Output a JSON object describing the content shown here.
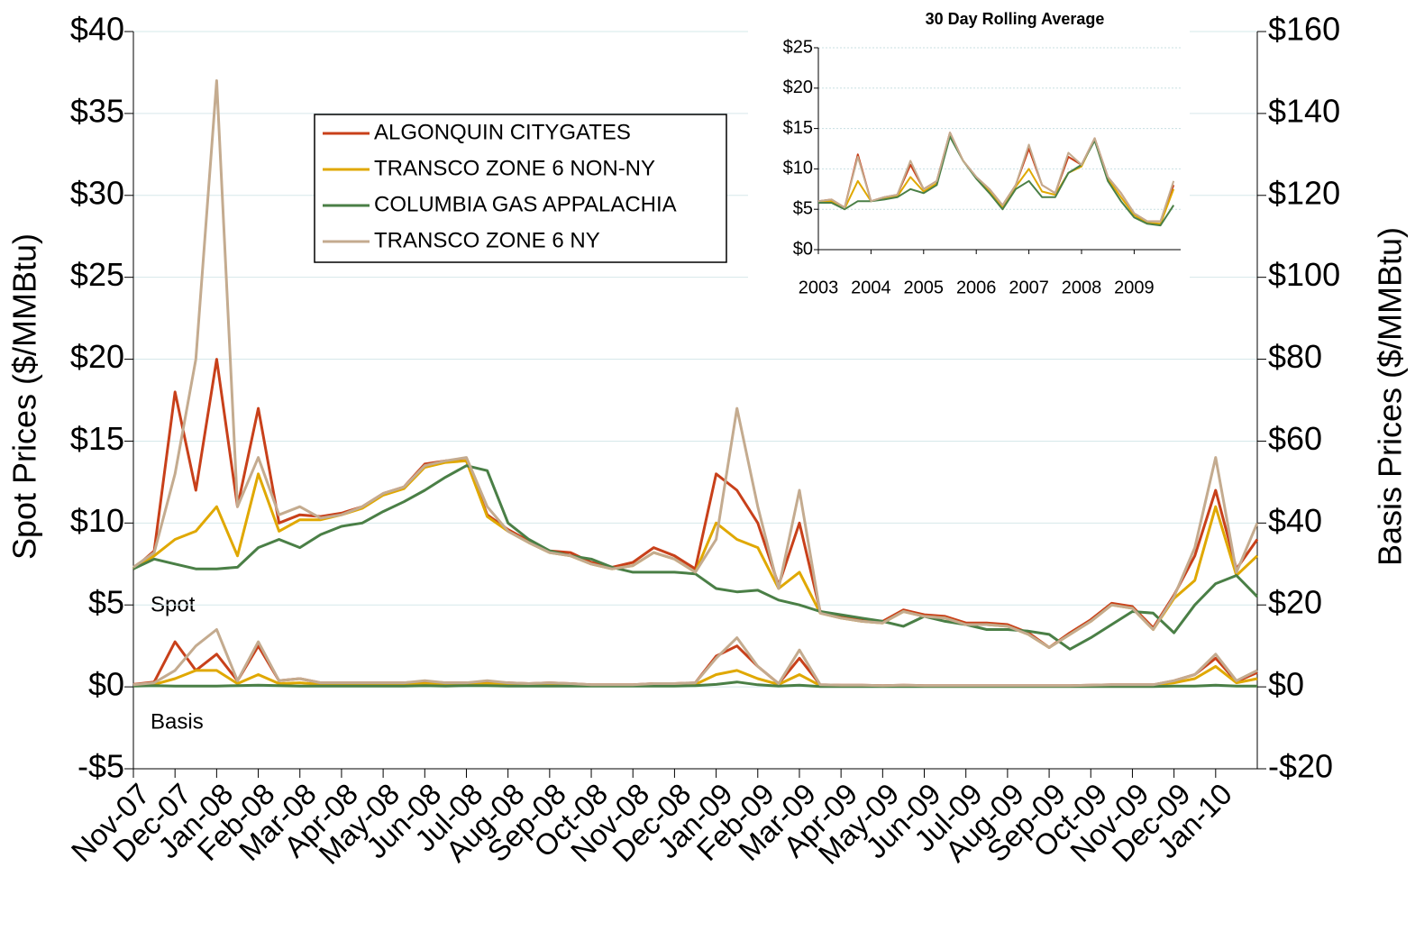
{
  "chart_data": {
    "type": "line",
    "ylabel": "Spot Prices ($/MMBtu)",
    "y2label": "Basis Prices ($/MMBtu)",
    "annotations": [
      "Spot",
      "Basis"
    ],
    "ylim": [
      -5,
      40
    ],
    "yticks": [
      {
        "value": -5,
        "label": "-$5"
      },
      {
        "value": 0,
        "label": "$0"
      },
      {
        "value": 5,
        "label": "$5"
      },
      {
        "value": 10,
        "label": "$10"
      },
      {
        "value": 15,
        "label": "$15"
      },
      {
        "value": 20,
        "label": "$20"
      },
      {
        "value": 25,
        "label": "$25"
      },
      {
        "value": 30,
        "label": "$30"
      },
      {
        "value": 35,
        "label": "$35"
      },
      {
        "value": 40,
        "label": "$40"
      }
    ],
    "y2lim": [
      -20,
      160
    ],
    "y2ticks": [
      {
        "value": -20,
        "label": "-$20"
      },
      {
        "value": 0,
        "label": "$0"
      },
      {
        "value": 20,
        "label": "$20"
      },
      {
        "value": 40,
        "label": "$40"
      },
      {
        "value": 60,
        "label": "$60"
      },
      {
        "value": 80,
        "label": "$80"
      },
      {
        "value": 100,
        "label": "$100"
      },
      {
        "value": 120,
        "label": "$120"
      },
      {
        "value": 140,
        "label": "$140"
      },
      {
        "value": 160,
        "label": "$160"
      }
    ],
    "grid": true,
    "categories": [
      "Nov-07",
      null,
      "Dec-07",
      null,
      "Jan-08",
      null,
      "Feb-08",
      null,
      "Mar-08",
      null,
      "Apr-08",
      null,
      "May-08",
      null,
      "Jun-08",
      null,
      "Jul-08",
      null,
      "Aug-08",
      null,
      "Sep-08",
      null,
      "Oct-08",
      null,
      "Nov-08",
      null,
      "Dec-08",
      null,
      "Jan-09",
      null,
      "Feb-09",
      null,
      "Mar-09",
      null,
      "Apr-09",
      null,
      "May-09",
      null,
      "Jun-09",
      null,
      "Jul-09",
      null,
      "Aug-09",
      null,
      "Sep-09",
      null,
      "Oct-09",
      null,
      "Nov-09",
      null,
      "Dec-09",
      null,
      "Jan-10",
      null,
      null
    ],
    "series": [
      {
        "name": "ALGONQUIN CITYGATES",
        "color": "#c8401a",
        "values": [
          7.2,
          8.3,
          18,
          12,
          20,
          11,
          17,
          10,
          10.5,
          10.4,
          10.6,
          11,
          11.8,
          12.2,
          13.6,
          13.8,
          13.8,
          10.5,
          9.6,
          8.9,
          8.3,
          8.2,
          7.6,
          7.3,
          7.6,
          8.5,
          8,
          7.2,
          13,
          12,
          10,
          6.2,
          10,
          4.6,
          4.3,
          4.1,
          4.0,
          4.7,
          4.4,
          4.3,
          3.9,
          3.9,
          3.8,
          3.3,
          2.4,
          3.3,
          4.1,
          5.1,
          4.9,
          3.6,
          5.6,
          8.0,
          12,
          7.2,
          9
        ],
        "basis": [
          0.6,
          1.2,
          11,
          4,
          8,
          1.5,
          10,
          1.5,
          2,
          1,
          1,
          1,
          1,
          1,
          1.3,
          1,
          1,
          1.2,
          1,
          0.8,
          1,
          0.8,
          0.5,
          0.5,
          0.5,
          0.8,
          0.8,
          1,
          7.5,
          10,
          5,
          0.8,
          7,
          0.5,
          0.4,
          0.4,
          0.3,
          0.4,
          0.3,
          0.3,
          0.3,
          0.3,
          0.3,
          0.3,
          0.3,
          0.3,
          0.4,
          0.5,
          0.5,
          0.5,
          1.5,
          3,
          7,
          1.3,
          3.5
        ],
        "inset_values": [
          6,
          6.2,
          5.2,
          11.8,
          6,
          6.5,
          6.8,
          10.5,
          7.5,
          8.5,
          14.5,
          11,
          9,
          7.5,
          5.5,
          8,
          12.5,
          8,
          7,
          11.5,
          10.5,
          13.8,
          9,
          7,
          4.5,
          3.5,
          3.5,
          8
        ]
      },
      {
        "name": "TRANSCO ZONE 6 NON-NY",
        "color": "#e0a800",
        "values": [
          7.2,
          8.0,
          9,
          9.5,
          11,
          8,
          13,
          9.5,
          10.2,
          10.2,
          10.5,
          10.9,
          11.7,
          12.1,
          13.4,
          13.7,
          13.8,
          10.4,
          9.5,
          8.8,
          8.2,
          8.0,
          7.5,
          7.2,
          7.4,
          8.2,
          7.8,
          7.0,
          10,
          9,
          8.5,
          6.0,
          7,
          4.5,
          4.2,
          4.0,
          3.9,
          4.6,
          4.3,
          4.2,
          3.8,
          3.8,
          3.7,
          3.2,
          2.4,
          3.2,
          4.0,
          5.0,
          4.8,
          3.5,
          5.4,
          6.5,
          11,
          6.8,
          8
        ],
        "basis": [
          0.4,
          0.6,
          2,
          4,
          4,
          0.8,
          3,
          0.8,
          1,
          0.6,
          0.6,
          0.6,
          0.6,
          0.6,
          0.8,
          0.6,
          0.6,
          0.8,
          0.6,
          0.5,
          0.6,
          0.5,
          0.4,
          0.4,
          0.4,
          0.6,
          0.6,
          0.6,
          3,
          4,
          2,
          0.6,
          3,
          0.3,
          0.3,
          0.3,
          0.2,
          0.3,
          0.2,
          0.2,
          0.2,
          0.2,
          0.2,
          0.2,
          0.2,
          0.2,
          0.3,
          0.4,
          0.4,
          0.4,
          1,
          2,
          5,
          1,
          2
        ],
        "inset_values": [
          5.9,
          6,
          5.1,
          8.5,
          6,
          6.3,
          6.6,
          9,
          7.2,
          8.2,
          14.3,
          11,
          8.9,
          7.2,
          5.2,
          7.8,
          10,
          7.2,
          6.8,
          9.5,
          10.3,
          13.7,
          8.8,
          6.5,
          4.3,
          3.3,
          3.2,
          7.5
        ]
      },
      {
        "name": "COLUMBIA GAS APPALACHIA",
        "color": "#4a7f46",
        "values": [
          7.2,
          7.8,
          7.5,
          7.2,
          7.2,
          7.3,
          8.5,
          9,
          8.5,
          9.3,
          9.8,
          10,
          10.7,
          11.3,
          12,
          12.8,
          13.5,
          13.2,
          10,
          9,
          8.3,
          8.0,
          7.8,
          7.3,
          7.0,
          7.0,
          7.0,
          6.9,
          6.0,
          5.8,
          5.9,
          5.3,
          5.0,
          4.6,
          4.4,
          4.2,
          4.0,
          3.7,
          4.3,
          4.0,
          3.8,
          3.5,
          3.5,
          3.4,
          3.2,
          2.3,
          3.0,
          3.8,
          4.6,
          4.5,
          3.3,
          5.0,
          6.3,
          6.8,
          5.5
        ],
        "basis": [
          0.2,
          0.3,
          0.2,
          0.2,
          0.2,
          0.3,
          0.4,
          0.3,
          0.2,
          0.2,
          0.2,
          0.2,
          0.2,
          0.2,
          0.3,
          0.2,
          0.3,
          0.3,
          0.2,
          0.2,
          0.2,
          0.2,
          0.2,
          0.2,
          0.2,
          0.2,
          0.2,
          0.3,
          0.6,
          1.2,
          0.5,
          0.2,
          0.4,
          0.1,
          0.1,
          0.1,
          0.1,
          0.1,
          0.1,
          0.1,
          0.1,
          0.1,
          0.1,
          0.1,
          0.1,
          0.1,
          0.1,
          0.1,
          0.1,
          0.1,
          0.2,
          0.2,
          0.4,
          0.2,
          0.2
        ],
        "inset_values": [
          5.8,
          5.8,
          5,
          6,
          6,
          6.2,
          6.5,
          7.5,
          7,
          8,
          14,
          11,
          8.8,
          7,
          5,
          7.5,
          8.5,
          6.5,
          6.5,
          9.5,
          10.5,
          13.5,
          8.5,
          6,
          4,
          3.2,
          3,
          5.5
        ]
      },
      {
        "name": "TRANSCO ZONE 6 NY",
        "color": "#c4ab8f",
        "values": [
          7.3,
          8.2,
          13,
          20,
          37,
          11,
          14,
          10.5,
          11,
          10.3,
          10.5,
          11,
          11.8,
          12.2,
          13.5,
          13.8,
          14,
          11,
          9.5,
          8.8,
          8.2,
          8.0,
          7.5,
          7.2,
          7.4,
          8.2,
          7.8,
          7.0,
          9,
          17,
          11,
          6,
          12,
          4.5,
          4.2,
          4.0,
          3.9,
          4.6,
          4.3,
          4.2,
          3.8,
          3.8,
          3.7,
          3.2,
          2.4,
          3.2,
          4.0,
          5.0,
          4.8,
          3.5,
          5.5,
          8.5,
          14,
          7,
          10
        ],
        "basis": [
          0.5,
          1,
          4,
          10,
          14,
          1.5,
          11,
          1.5,
          2,
          1,
          1,
          1,
          1,
          1,
          1.5,
          1,
          1,
          1.5,
          1,
          0.8,
          1,
          0.8,
          0.5,
          0.5,
          0.5,
          0.8,
          0.8,
          1,
          7,
          12,
          5,
          0.8,
          9,
          0.5,
          0.4,
          0.4,
          0.3,
          0.4,
          0.3,
          0.3,
          0.3,
          0.3,
          0.3,
          0.3,
          0.3,
          0.3,
          0.4,
          0.5,
          0.5,
          0.5,
          1.5,
          3,
          8,
          1.5,
          4
        ],
        "inset_values": [
          6,
          6.2,
          5.2,
          11.5,
          6,
          6.5,
          6.8,
          11,
          7.5,
          8.5,
          14.5,
          11,
          9,
          7.5,
          5.5,
          8,
          13,
          8,
          7,
          12,
          10.5,
          13.8,
          9,
          7,
          4.5,
          3.5,
          3.5,
          8.5
        ]
      }
    ],
    "inset": {
      "title": "30 Day Rolling Average",
      "categories": [
        "2003",
        null,
        null,
        null,
        "2004",
        null,
        null,
        null,
        "2005",
        null,
        null,
        null,
        "2006",
        null,
        null,
        null,
        "2007",
        null,
        null,
        null,
        "2008",
        null,
        null,
        null,
        "2009",
        null,
        null,
        null
      ],
      "ylim": [
        0,
        25
      ],
      "yticks": [
        {
          "value": 0,
          "label": "$0"
        },
        {
          "value": 5,
          "label": "$5"
        },
        {
          "value": 10,
          "label": "$10"
        },
        {
          "value": 15,
          "label": "$15"
        },
        {
          "value": 20,
          "label": "$20"
        },
        {
          "value": 25,
          "label": "$25"
        }
      ],
      "grid": true
    }
  }
}
